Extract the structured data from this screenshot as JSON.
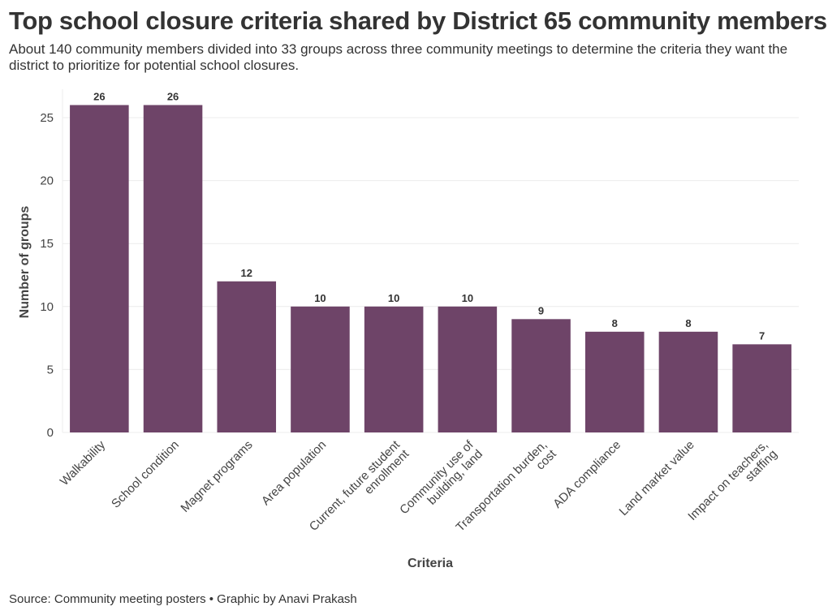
{
  "header": {
    "title": "Top school closure criteria shared by District 65 community members",
    "subtitle": "About 140 community members divided into 33 groups across three community meetings to determine the criteria they want the district to prioritize for potential school closures."
  },
  "footer": {
    "source": "Source: Community meeting posters • Graphic by Anavi Prakash"
  },
  "colors": {
    "bar": "#6e4468",
    "grid": "#ececec"
  },
  "chart_data": {
    "type": "bar",
    "xlabel": "Criteria",
    "ylabel": "Number of groups",
    "ylim": [
      0,
      27
    ],
    "yticks": [
      0,
      5,
      10,
      15,
      20,
      25
    ],
    "grid": true,
    "categories": [
      [
        "Walkability"
      ],
      [
        "School condition"
      ],
      [
        "Magnet programs"
      ],
      [
        "Area population"
      ],
      [
        "Current, future student",
        "enrollment"
      ],
      [
        "Community use of",
        "building, land"
      ],
      [
        "Transportation burden,",
        "cost"
      ],
      [
        "ADA compliance"
      ],
      [
        "Land market value"
      ],
      [
        "Impact on teachers,",
        "staffing"
      ]
    ],
    "values": [
      26,
      26,
      12,
      10,
      10,
      10,
      9,
      8,
      8,
      7
    ]
  }
}
